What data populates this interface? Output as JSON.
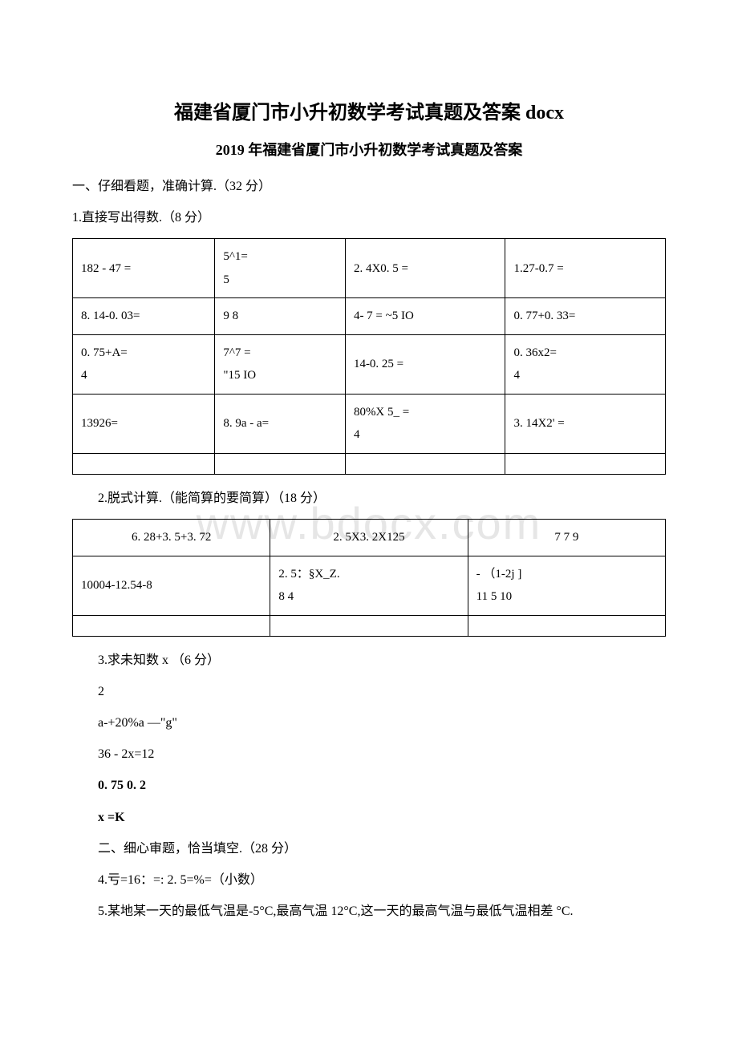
{
  "watermark": "www.bdocx.com",
  "title": "福建省厦门市小升初数学考试真题及答案 docx",
  "subtitle": "2019 年福建省厦门市小升初数学考试真题及答案",
  "section1_header": "一、仔细看题，准确计算.（32 分）",
  "q1_header": "1.直接写出得数.（8 分）",
  "table1": {
    "rows": [
      [
        "182 - 47 =",
        "5^1=\n5",
        "2. 4X0. 5 =",
        "1.27-0.7 ="
      ],
      [
        "8. 14-0. 03=",
        "9 8",
        "4- 7 = ~5 IO",
        "0. 77+0. 33="
      ],
      [
        "0. 75+A=\n4",
        "7^7 =\n\"15 IO",
        "14-0. 25 =",
        "0. 36x2=\n4"
      ],
      [
        "13926=",
        "8. 9a - a=",
        "80%X 5_ =\n4",
        "3. 14X2' ="
      ]
    ]
  },
  "q2_header": "2.脱式计算.（能简算的要简算）（18 分）",
  "table2": {
    "rows": [
      [
        "6. 28+3. 5+3. 72",
        "2. 5X3. 2X125",
        "7 7 9"
      ],
      [
        "10004-12.54-8",
        "2. 5：§X_Z.\n8 4",
        "- （1-2j ]\n11 5 10"
      ]
    ]
  },
  "q3_header": "3.求未知数 x （6 分）",
  "q3_lines": [
    "2",
    "a-+20%a —\"g\"",
    "36 - 2x=12"
  ],
  "q3_bold1": "0. 75 0. 2",
  "q3_bold2": "x =K",
  "section2_header": "二、细心审题，恰当填空.（28 分）",
  "q4": "4.亏=16：=: 2. 5=%=（小数）",
  "q5": "5.某地某一天的最低气温是-5°C,最高气温 12°C,这一天的最高气温与最低气温相差 °C.",
  "colors": {
    "text": "#000000",
    "background": "#ffffff",
    "border": "#000000",
    "watermark": "#e6e6e6"
  }
}
